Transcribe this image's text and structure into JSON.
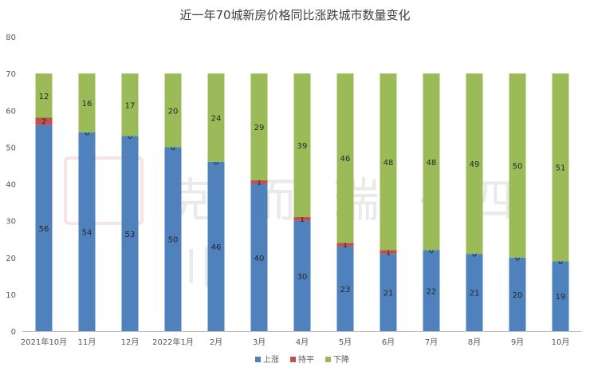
{
  "chart_data": {
    "type": "bar",
    "stacked": true,
    "title": "近一年70城新房价格同比涨跌城市数量变化",
    "categories": [
      "2021年10月",
      "11月",
      "12月",
      "2022年1月",
      "2月",
      "3月",
      "4月",
      "5月",
      "6月",
      "7月",
      "8月",
      "9月",
      "10月"
    ],
    "series": [
      {
        "name": "上涨",
        "color": "#4f81bd",
        "values": [
          56,
          54,
          53,
          50,
          46,
          40,
          30,
          23,
          21,
          22,
          21,
          20,
          19
        ]
      },
      {
        "name": "持平",
        "color": "#c0504d",
        "values": [
          2,
          0,
          0,
          0,
          0,
          1,
          1,
          1,
          1,
          0,
          0,
          0,
          0
        ]
      },
      {
        "name": "下降",
        "color": "#9bbb59",
        "values": [
          12,
          16,
          17,
          20,
          24,
          29,
          39,
          46,
          48,
          48,
          49,
          50,
          51
        ]
      }
    ],
    "ylim": [
      0,
      80
    ],
    "yticks": [
      0,
      10,
      20,
      30,
      40,
      50,
      60,
      70,
      80
    ],
    "grid": false,
    "legend": "bottom",
    "xlabel": "",
    "ylabel": ""
  },
  "watermark": {
    "text": "克而瑞·四川"
  }
}
